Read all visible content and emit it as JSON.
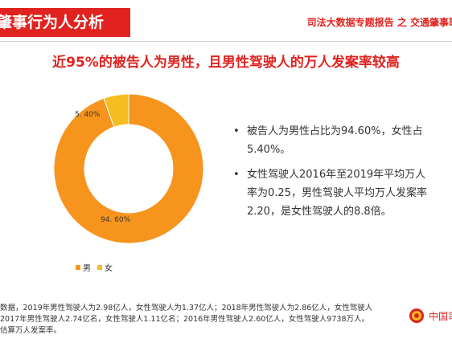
{
  "header": {
    "banner_title": "肇事行为人分析",
    "report_title": "司法大数据专题报告 之 交通肇事罪特"
  },
  "headline": "近95%的被告人为男性，且男性驾驶人的万人发案率较高",
  "chart_data": {
    "type": "pie",
    "donut": true,
    "categories": [
      "男",
      "女"
    ],
    "values": [
      94.6,
      5.4
    ],
    "data_labels": [
      "94. 60%",
      "5. 40%"
    ],
    "colors": [
      "#f7941d",
      "#f5bd1f"
    ],
    "legend_position": "bottom-left"
  },
  "legend": [
    {
      "label": "男",
      "color": "#f7941d"
    },
    {
      "label": "女",
      "color": "#f5bd1f"
    }
  ],
  "bullets": [
    {
      "lines": [
        "被告人为男性占比为94.60%，女性占",
        "5.40%。"
      ]
    },
    {
      "lines": [
        "女性驾驶人2016年至2019年平均万人",
        "率为0.25，男性驾驶人平均万人发案率",
        "2.20，是女性驾驶人的8.8倍。"
      ]
    }
  ],
  "footnote": [
    "数据，2019年男性驾驶人为2.98亿人，女性驾驶人为1.37亿人；2018年男性驾驶人为2.86亿人，女性驾驶人",
    "2017年男性驾驶人2.74亿名，女性驾驶人1.11亿名；2016年男性驾驶人2.60亿人，女性驾驶人9738万人。",
    "估算万人发案率。"
  ],
  "logo": {
    "text": "中国司",
    "icon": "court-emblem-icon",
    "color": "#e0231f"
  },
  "colors": {
    "accent": "#e0231f"
  }
}
